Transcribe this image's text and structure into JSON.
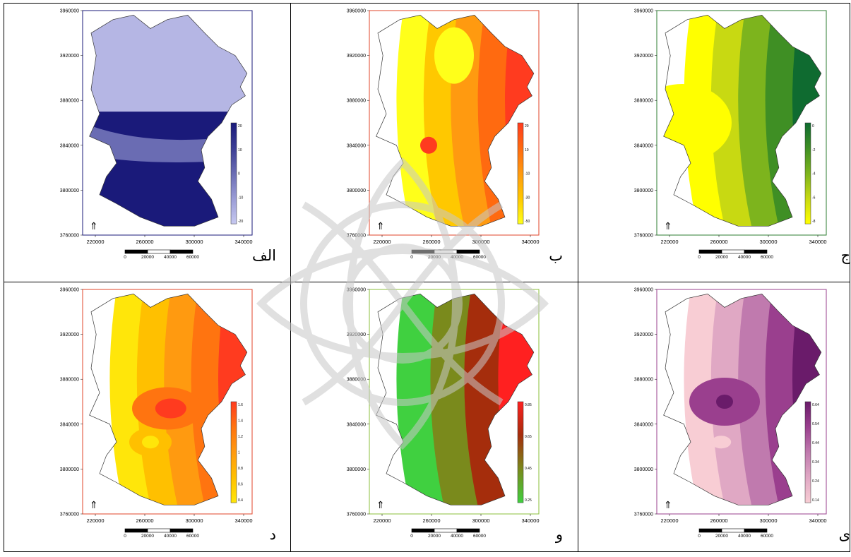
{
  "panels": [
    {
      "letter": "الف",
      "yticks": [
        "3960000",
        "3920000",
        "3880000",
        "3840000",
        "3800000",
        "3760000"
      ],
      "xticks": [
        "220000",
        "260000",
        "300000",
        "340000"
      ],
      "scale": [
        "0",
        "20000",
        "40000",
        "60000"
      ],
      "cbar": [
        "20",
        "10",
        "0",
        "-10",
        "-20"
      ],
      "palette": [
        "#1a1a7a",
        "#3b3d94",
        "#6a6cb3",
        "#9a9cd6",
        "#c6c8f0"
      ],
      "frame": "#1a1a7a"
    },
    {
      "letter": "ب",
      "yticks": [
        "3960000",
        "3920000",
        "3880000",
        "3840000",
        "3800000",
        "3760000"
      ],
      "xticks": [
        "220000",
        "260000",
        "300000",
        "340000"
      ],
      "scale": [
        "0",
        "20000",
        "40000",
        "60000"
      ],
      "cbar": [
        "20",
        "10",
        "-10",
        "-30",
        "-50"
      ],
      "palette": [
        "#ff3b1f",
        "#ff6a10",
        "#ff9a10",
        "#ffc800",
        "#ffff1a"
      ],
      "frame": "#e0452a"
    },
    {
      "letter": "ج",
      "yticks": [
        "3960000",
        "3920000",
        "3880000",
        "3840000",
        "3800000",
        "3760000"
      ],
      "xticks": [
        "220000",
        "260000",
        "300000",
        "340000"
      ],
      "scale": [
        "0",
        "20000",
        "40000",
        "60000"
      ],
      "cbar": [
        "0",
        "-2",
        "-4",
        "-6",
        "-8"
      ],
      "palette": [
        "#0f6b30",
        "#3f8f24",
        "#7db41d",
        "#c8d912",
        "#ffff00"
      ],
      "frame": "#2e7d32"
    },
    {
      "letter": "د",
      "yticks": [
        "3960000",
        "3920000",
        "3880000",
        "3840000",
        "3800000",
        "3760000"
      ],
      "xticks": [
        "220000",
        "260000",
        "300000",
        "340000"
      ],
      "scale": [
        "0",
        "20000",
        "40000",
        "60000"
      ],
      "cbar": [
        "1.6",
        "1.4",
        "1.2",
        "1",
        "0.8",
        "0.6",
        "0.4"
      ],
      "palette": [
        "#ff3b1f",
        "#ff7410",
        "#ff9a10",
        "#ffc000",
        "#ffe60a"
      ],
      "frame": "#e0452a"
    },
    {
      "letter": "و",
      "yticks": [
        "3960000",
        "3920000",
        "3880000",
        "3840000",
        "3800000",
        "3760000"
      ],
      "xticks": [
        "220000",
        "260000",
        "300000",
        "340000"
      ],
      "scale": [
        "0",
        "20000",
        "40000",
        "60000"
      ],
      "cbar": [
        "0.85",
        "0.65",
        "0.45",
        "0.25"
      ],
      "palette": [
        "#ff2020",
        "#a52d0c",
        "#7a8a1c",
        "#40d040"
      ],
      "frame": "#8bbf3b"
    },
    {
      "letter": "ی",
      "yticks": [
        "3960000",
        "3920000",
        "3880000",
        "3840000",
        "3800000",
        "3760000"
      ],
      "xticks": [
        "220000",
        "260000",
        "300000",
        "340000"
      ],
      "scale": [
        "0",
        "20000",
        "40000",
        "60000"
      ],
      "cbar": [
        "0.64",
        "0.54",
        "0.44",
        "0.34",
        "0.24",
        "0.14"
      ],
      "palette": [
        "#6a1b6a",
        "#9a3f8e",
        "#c07aae",
        "#e0a8c4",
        "#f8cdd4"
      ],
      "frame": "#9a3f8e"
    }
  ]
}
